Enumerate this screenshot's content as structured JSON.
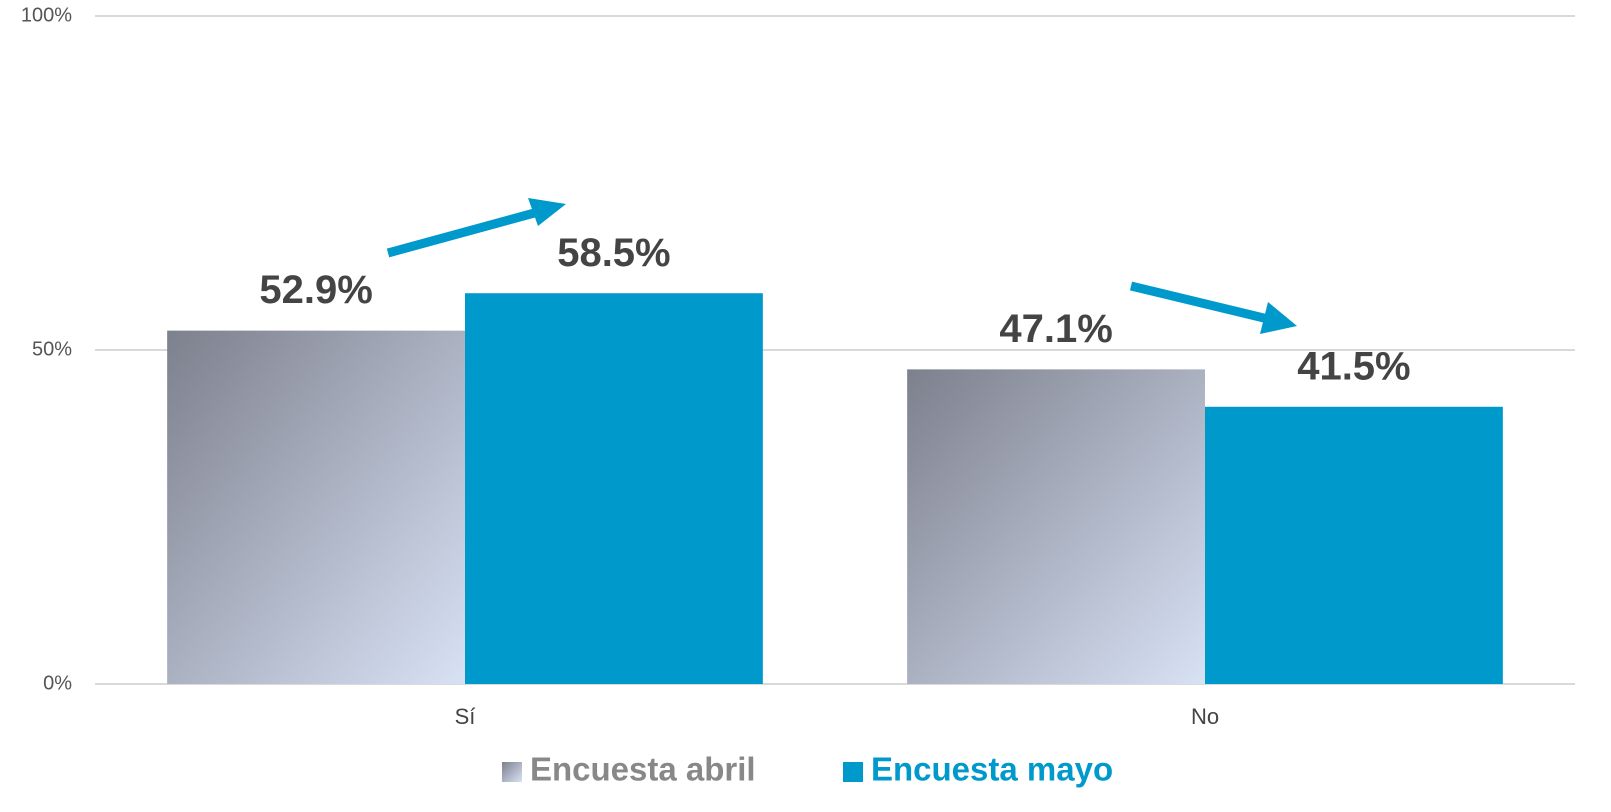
{
  "chart_data": {
    "type": "bar",
    "categories": [
      "Sí",
      "No"
    ],
    "series": [
      {
        "name": "Encuesta abril",
        "color": "#a7aec0",
        "gradient": [
          "#7d808d",
          "#d8e2f5"
        ],
        "values": [
          52.9,
          47.1
        ],
        "value_labels": [
          "52.9%",
          "47.1%"
        ]
      },
      {
        "name": "Encuesta mayo",
        "color": "#0099cc",
        "values": [
          58.5,
          41.5
        ],
        "value_labels": [
          "58.5%",
          "41.5%"
        ]
      }
    ],
    "ylim": [
      0,
      100
    ],
    "yticks": [
      {
        "value": 0,
        "label": "0%"
      },
      {
        "value": 50,
        "label": "50%"
      },
      {
        "value": 100,
        "label": "100%"
      }
    ],
    "grid": true,
    "legend": "bottom"
  }
}
